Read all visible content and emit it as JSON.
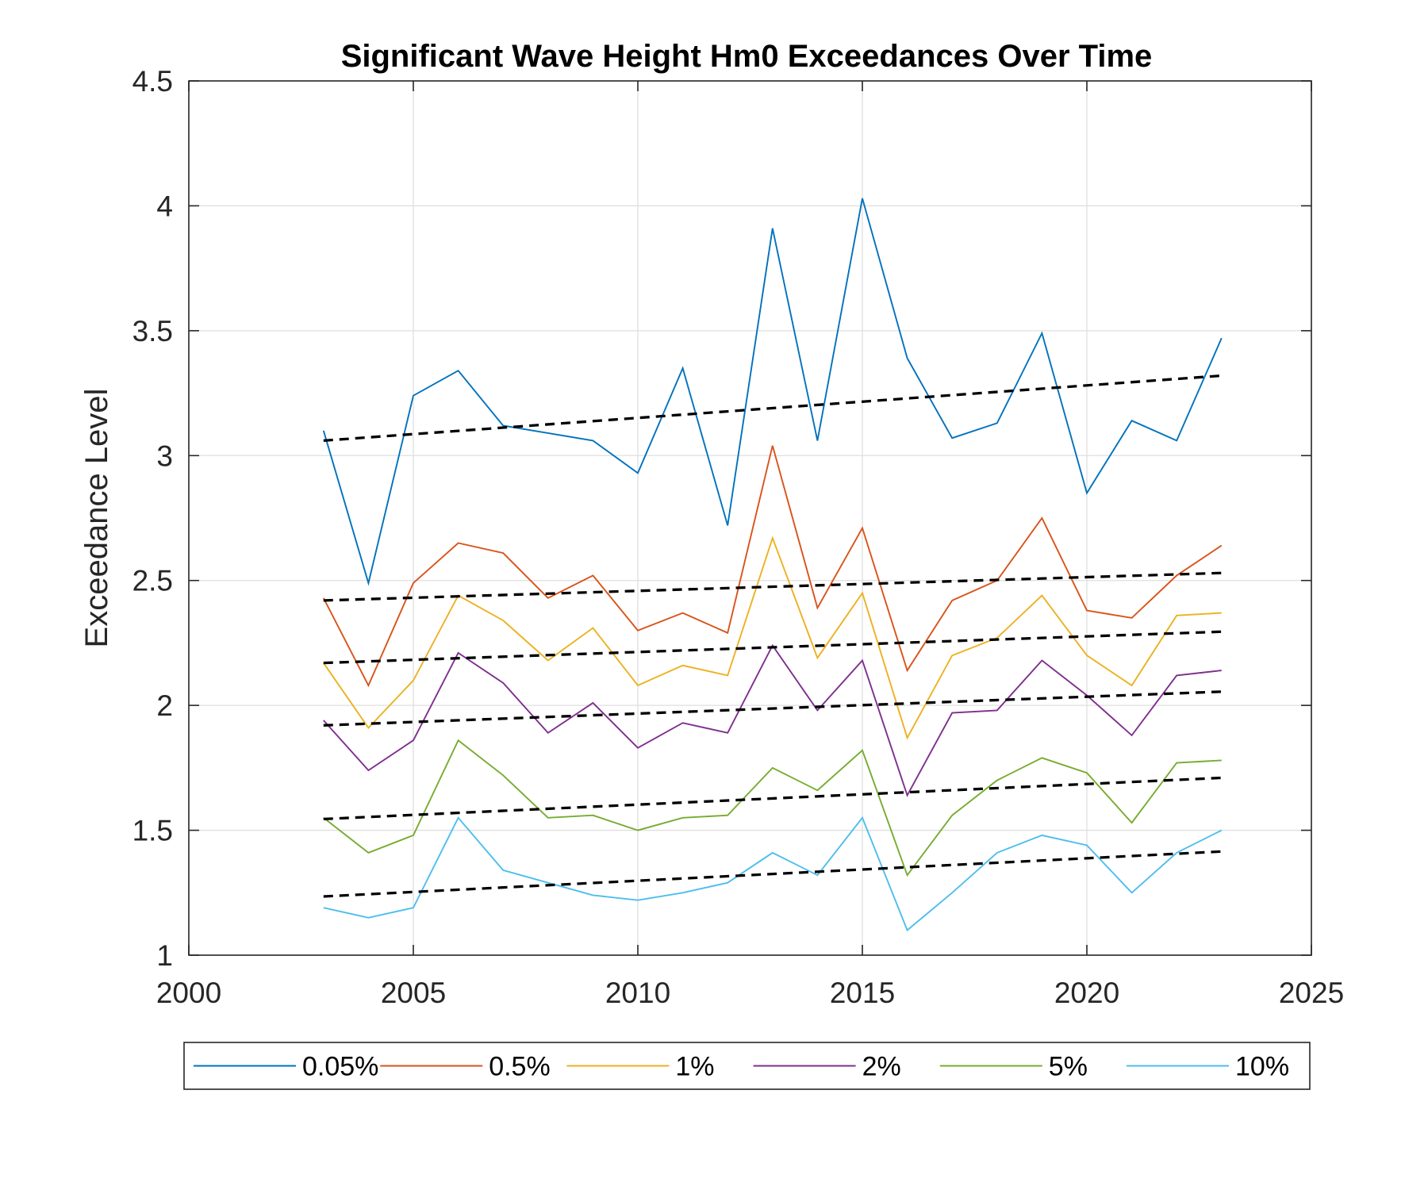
{
  "chart_data": {
    "type": "line",
    "title": "Significant Wave Height Hm0 Exceedances Over Time",
    "xlabel": "",
    "ylabel": "Exceedance Level",
    "xlim": [
      2000,
      2025
    ],
    "ylim": [
      1,
      4.5
    ],
    "xticks": [
      2000,
      2005,
      2010,
      2015,
      2020,
      2025
    ],
    "yticks": [
      1,
      1.5,
      2,
      2.5,
      3,
      3.5,
      4,
      4.5
    ],
    "xtick_labels": [
      "2000",
      "2005",
      "2010",
      "2015",
      "2020",
      "2025"
    ],
    "ytick_labels": [
      "1",
      "1.5",
      "2",
      "2.5",
      "3",
      "3.5",
      "4",
      "4.5"
    ],
    "grid": true,
    "legend_position": "bottom-outside",
    "x": [
      2003,
      2004,
      2005,
      2006,
      2007,
      2008,
      2009,
      2010,
      2011,
      2012,
      2013,
      2014,
      2015,
      2016,
      2017,
      2018,
      2019,
      2020,
      2021,
      2022,
      2023
    ],
    "series": [
      {
        "name": "0.05%",
        "color": "#0072BD",
        "values": [
          3.1,
          2.49,
          3.24,
          3.34,
          3.12,
          3.09,
          3.06,
          2.93,
          3.35,
          2.72,
          3.91,
          3.06,
          4.03,
          3.39,
          3.07,
          3.13,
          3.49,
          2.85,
          3.14,
          3.06,
          3.47
        ]
      },
      {
        "name": "0.5%",
        "color": "#D95319",
        "values": [
          2.43,
          2.08,
          2.49,
          2.65,
          2.61,
          2.43,
          2.52,
          2.3,
          2.37,
          2.29,
          3.04,
          2.39,
          2.71,
          2.14,
          2.42,
          2.5,
          2.75,
          2.38,
          2.35,
          2.52,
          2.64
        ]
      },
      {
        "name": "1%",
        "color": "#EDB120",
        "values": [
          2.17,
          1.91,
          2.1,
          2.44,
          2.34,
          2.18,
          2.31,
          2.08,
          2.16,
          2.12,
          2.67,
          2.19,
          2.45,
          1.87,
          2.2,
          2.27,
          2.44,
          2.2,
          2.08,
          2.36,
          2.37
        ]
      },
      {
        "name": "2%",
        "color": "#7E2F8E",
        "values": [
          1.94,
          1.74,
          1.86,
          2.21,
          2.09,
          1.89,
          2.01,
          1.83,
          1.93,
          1.89,
          2.24,
          1.98,
          2.18,
          1.64,
          1.97,
          1.98,
          2.18,
          2.04,
          1.88,
          2.12,
          2.14
        ]
      },
      {
        "name": "5%",
        "color": "#77AC30",
        "values": [
          1.55,
          1.41,
          1.48,
          1.86,
          1.72,
          1.55,
          1.56,
          1.5,
          1.55,
          1.56,
          1.75,
          1.66,
          1.82,
          1.32,
          1.56,
          1.7,
          1.79,
          1.73,
          1.53,
          1.77,
          1.78
        ]
      },
      {
        "name": "10%",
        "color": "#4DBEEE",
        "values": [
          1.19,
          1.15,
          1.19,
          1.55,
          1.34,
          1.29,
          1.24,
          1.22,
          1.25,
          1.29,
          1.41,
          1.32,
          1.55,
          1.1,
          1.25,
          1.41,
          1.48,
          1.44,
          1.25,
          1.41,
          1.5
        ]
      }
    ],
    "trend_lines": [
      {
        "style": "dashed",
        "color": "#000000",
        "x": [
          2003,
          2023
        ],
        "y": [
          3.06,
          3.32
        ]
      },
      {
        "style": "dashed",
        "color": "#000000",
        "x": [
          2003,
          2023
        ],
        "y": [
          2.42,
          2.53
        ]
      },
      {
        "style": "dashed",
        "color": "#000000",
        "x": [
          2003,
          2023
        ],
        "y": [
          2.17,
          2.295
        ]
      },
      {
        "style": "dashed",
        "color": "#000000",
        "x": [
          2003,
          2023
        ],
        "y": [
          1.92,
          2.055
        ]
      },
      {
        "style": "dashed",
        "color": "#000000",
        "x": [
          2003,
          2023
        ],
        "y": [
          1.545,
          1.71
        ]
      },
      {
        "style": "dashed",
        "color": "#000000",
        "x": [
          2003,
          2023
        ],
        "y": [
          1.235,
          1.415
        ]
      }
    ]
  }
}
